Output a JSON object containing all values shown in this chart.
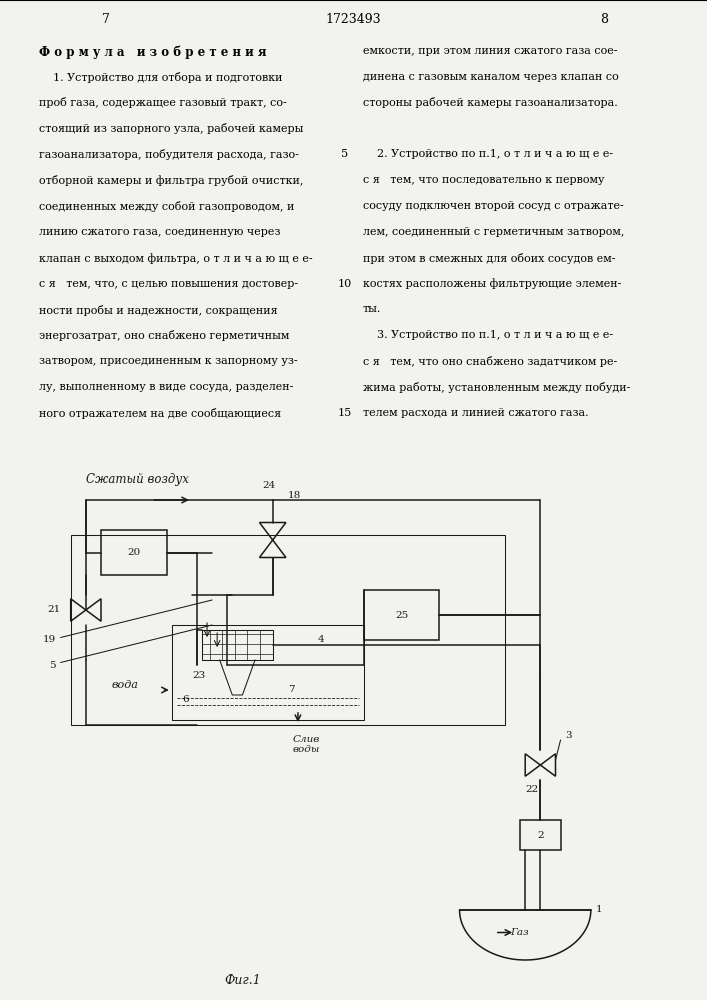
{
  "bg_color": "#f2f2ee",
  "lc": "#1a1a1a",
  "page_left": "7",
  "page_center": "1723493",
  "page_right": "8",
  "fig_caption": "Фиг.1",
  "left_col_lines": [
    "Ф о р м у л а   и з о б р е т е н и я",
    "    1. Устройство для отбора и подготовки",
    "проб газа, содержащее газовый тракт, со-",
    "стоящий из запорного узла, рабочей камеры",
    "газоанализатора, побудителя расхода, газо-",
    "отборной камеры и фильтра грубой очистки,",
    "соединенных между собой газопроводом, и",
    "линию сжатого газа, соединенную через",
    "клапан с выходом фильтра, о т л и ч а ю щ е е-",
    "с я   тем, что, с целью повышения достовер-",
    "ности пробы и надежности, сокращения",
    "энергозатрат, оно снабжено герметичным",
    "затвором, присоединенным к запорному уз-",
    "лу, выполненному в виде сосуда, разделен-",
    "ного отражателем на две сообщающиеся"
  ],
  "right_col_lines": [
    "емкости, при этом линия сжатого газа сое-",
    "динена с газовым каналом через клапан со",
    "стороны рабочей камеры газоанализатора.",
    "    2. Устройство по п.1, о т л и ч а ю щ е е-",
    "с я   тем, что последовательно к первому",
    "сосуду подключен второй сосуд с отражате-",
    "лем, соединенный с герметичным затвором,",
    "при этом в смежных для обоих сосудов ем-",
    "костях расположены фильтрующие элемен-",
    "ты.",
    "    3. Устройство по п.1, о т л и ч а ю щ е е-",
    "с я   тем, что оно снабжено задатчиком ре-",
    "жима работы, установленным между побуди-",
    "телем расхода и линией сжатого газа."
  ],
  "linenum_5_row": 4,
  "linenum_10_row": 9,
  "linenum_15_row": 14
}
